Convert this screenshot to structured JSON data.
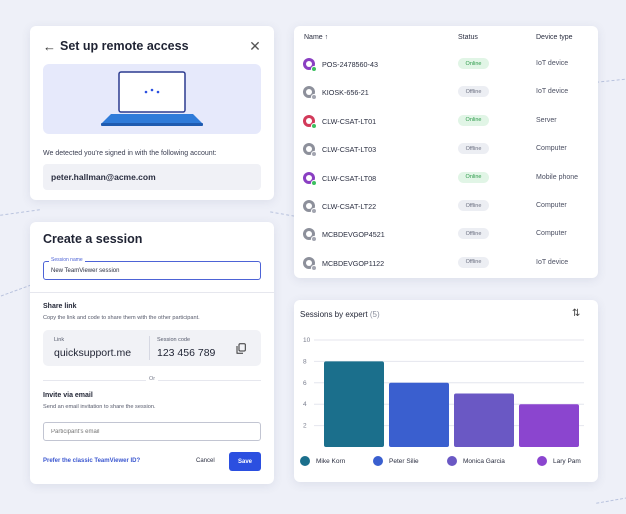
{
  "remote_access": {
    "title": "Set up remote access",
    "back_icon": "arrow-left-icon",
    "close_icon": "close-icon",
    "detected_text": "We detected you're signed in with the following account:",
    "account": "peter.hallman@acme.com"
  },
  "session": {
    "title": "Create a session",
    "name_label": "Session name",
    "name_value": "New TeamViewer session",
    "share_title": "Share link",
    "share_desc": "Copy the link and code to share them with the other participant.",
    "link_label": "Link",
    "link_value": "quicksupport.me",
    "code_label": "Session code",
    "code_value": "123 456 789",
    "or_text": "Or",
    "invite_title": "Invite via email",
    "invite_desc": "Send an email invitation to share the session.",
    "email_placeholder": "Participant's email",
    "prefer_link": "Prefer the classic TeamViewer ID?",
    "cancel_label": "Cancel",
    "save_label": "Save"
  },
  "devices": {
    "columns": {
      "name": "Name ↑",
      "status": "Status",
      "type": "Device type"
    },
    "rows": [
      {
        "name": "POS-2478560-43",
        "status": "Online",
        "type": "IoT device",
        "icon_color": "#8a3fc2",
        "online": true
      },
      {
        "name": "KIOSK-656-21",
        "status": "Offline",
        "type": "IoT device",
        "icon_color": "#8d909b",
        "online": false
      },
      {
        "name": "CLW-CSAT-LT01",
        "status": "Online",
        "type": "Server",
        "icon_color": "#d23a5a",
        "online": true
      },
      {
        "name": "CLW-CSAT-LT03",
        "status": "Offline",
        "type": "Computer",
        "icon_color": "#8d909b",
        "online": false
      },
      {
        "name": "CLW-CSAT-LT08",
        "status": "Online",
        "type": "Mobile phone",
        "icon_color": "#8a3fc2",
        "online": true
      },
      {
        "name": "CLW-CSAT-LT22",
        "status": "Offline",
        "type": "Computer",
        "icon_color": "#8d909b",
        "online": false
      },
      {
        "name": "MCBDEVGOP4521",
        "status": "Offline",
        "type": "Computer",
        "icon_color": "#8d909b",
        "online": false
      },
      {
        "name": "MCBDEVGOP1122",
        "status": "Offline",
        "type": "IoT device",
        "icon_color": "#8d909b",
        "online": false
      }
    ]
  },
  "chart_card": {
    "title": "Sessions by expert",
    "count": "(5)",
    "sort_icon": "sort-arrows-icon"
  },
  "chart_data": {
    "type": "bar",
    "title": "Sessions by expert",
    "categories": [
      "Mike Korn",
      "Peter Silie",
      "Monica Garcia",
      "Lary Pam"
    ],
    "values": [
      8,
      6,
      5,
      4
    ],
    "colors": [
      "#1b6f8c",
      "#3a5fcf",
      "#6a58c4",
      "#8b45cf"
    ],
    "ylim": [
      0,
      10
    ],
    "yticks": [
      2,
      4,
      6,
      8,
      10
    ],
    "grid": true,
    "legend": "bottom"
  }
}
